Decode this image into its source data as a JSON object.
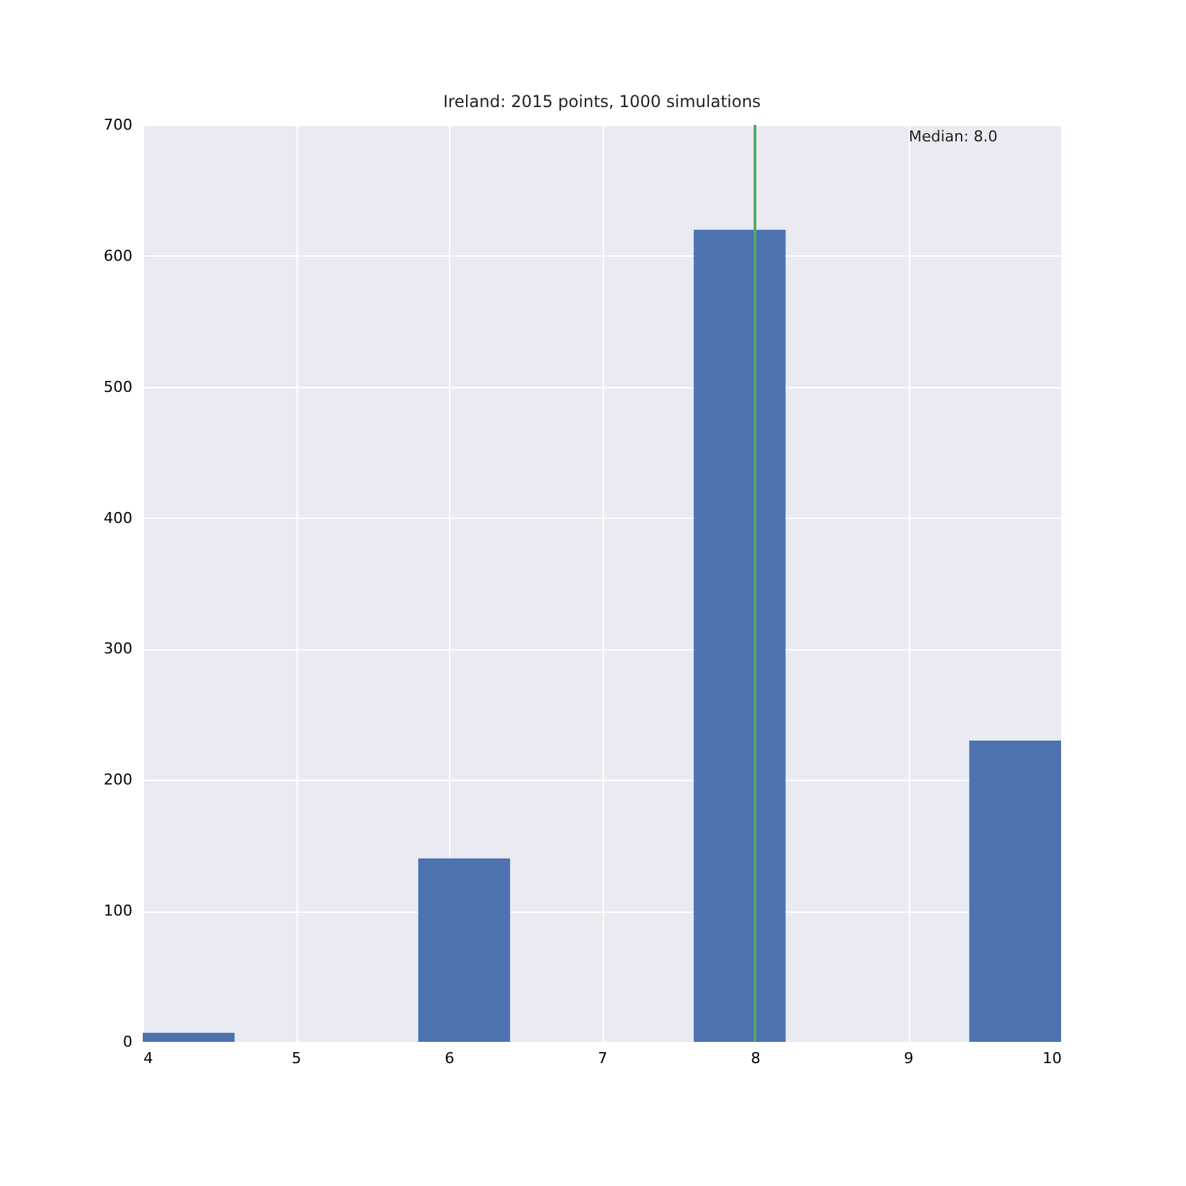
{
  "chart_data": {
    "type": "histogram",
    "title": "Ireland: 2015 points, 1000 simulations",
    "bins": [
      4,
      4.6,
      5.2,
      5.8,
      6.4,
      7.0,
      7.6,
      8.2,
      8.8,
      9.4,
      10
    ],
    "values": [
      7,
      0,
      0,
      140,
      0,
      0,
      620,
      0,
      0,
      230
    ],
    "color": "#4c72b0",
    "xlim": [
      4,
      10
    ],
    "xticks": [
      4,
      5,
      6,
      7,
      8,
      9,
      10
    ],
    "ylim": [
      0,
      700
    ],
    "yticks": [
      0,
      100,
      200,
      300,
      400,
      500,
      600,
      700
    ],
    "grid": true,
    "ref_lines": [
      {
        "axis": "x",
        "value": 8.0,
        "color": "#55a868"
      }
    ],
    "annotations": [
      "Median: 8.0"
    ]
  }
}
